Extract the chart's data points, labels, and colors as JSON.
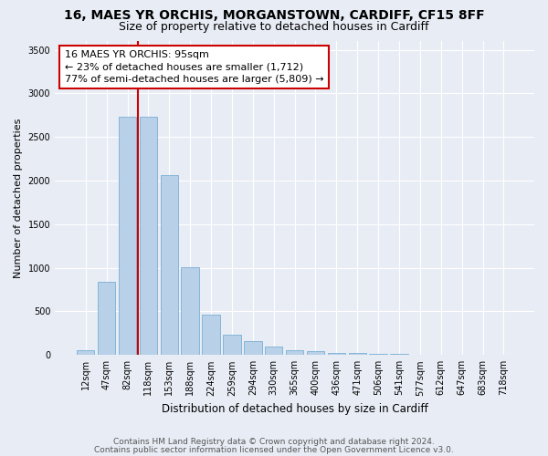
{
  "title1": "16, MAES YR ORCHIS, MORGANSTOWN, CARDIFF, CF15 8FF",
  "title2": "Size of property relative to detached houses in Cardiff",
  "xlabel": "Distribution of detached houses by size in Cardiff",
  "ylabel": "Number of detached properties",
  "categories": [
    "12sqm",
    "47sqm",
    "82sqm",
    "118sqm",
    "153sqm",
    "188sqm",
    "224sqm",
    "259sqm",
    "294sqm",
    "330sqm",
    "365sqm",
    "400sqm",
    "436sqm",
    "471sqm",
    "506sqm",
    "541sqm",
    "577sqm",
    "612sqm",
    "647sqm",
    "683sqm",
    "718sqm"
  ],
  "values": [
    55,
    840,
    2730,
    2730,
    2060,
    1010,
    460,
    235,
    155,
    100,
    55,
    40,
    25,
    20,
    15,
    10,
    5,
    3,
    2,
    1,
    1
  ],
  "bar_color": "#b8d0e8",
  "bar_edge_color": "#7aafd4",
  "vline_color": "#cc0000",
  "annotation_line1": "16 MAES YR ORCHIS: 95sqm",
  "annotation_line2": "← 23% of detached houses are smaller (1,712)",
  "annotation_line3": "77% of semi-detached houses are larger (5,809) →",
  "annotation_box_color": "#ffffff",
  "annotation_box_edge_color": "#cc0000",
  "ylim": [
    0,
    3600
  ],
  "yticks": [
    0,
    500,
    1000,
    1500,
    2000,
    2500,
    3000,
    3500
  ],
  "bg_color": "#e8edf5",
  "plot_bg_color": "#e8edf5",
  "footer1": "Contains HM Land Registry data © Crown copyright and database right 2024.",
  "footer2": "Contains public sector information licensed under the Open Government Licence v3.0.",
  "title1_fontsize": 10,
  "title2_fontsize": 9,
  "tick_fontsize": 7,
  "ylabel_fontsize": 8,
  "xlabel_fontsize": 8.5,
  "annotation_fontsize": 8,
  "footer_fontsize": 6.5
}
